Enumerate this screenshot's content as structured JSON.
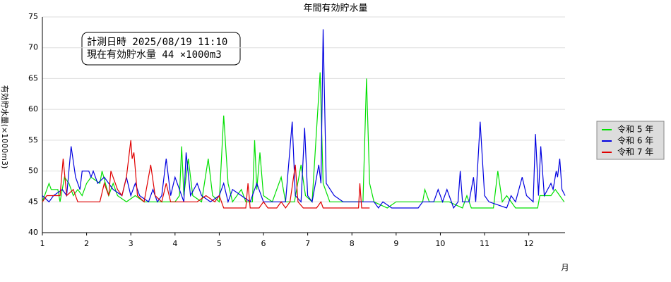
{
  "chart_data": {
    "type": "line",
    "title": "年間有効貯水量",
    "x_label": "月",
    "y_label": "有効貯水量(×1000m3)",
    "annotations": [
      "計測日時 2025/08/19 11:10",
      "現在有効貯水量 44 ×1000m3"
    ],
    "xlim": [
      1,
      12.82
    ],
    "xticks": [
      1,
      2,
      3,
      4,
      5,
      6,
      7,
      8,
      9,
      10,
      11,
      12
    ],
    "ylim": [
      40,
      75
    ],
    "yticks": [
      40,
      45,
      50,
      55,
      60,
      65,
      70,
      75
    ],
    "grid": true,
    "legend": "right",
    "series": [
      {
        "name": "令和 5 年",
        "color": "#00e000",
        "x": [
          1.0,
          1.15,
          1.2,
          1.35,
          1.4,
          1.5,
          1.6,
          1.7,
          1.8,
          1.9,
          2.0,
          2.1,
          2.3,
          2.35,
          2.5,
          2.6,
          2.7,
          2.9,
          3.1,
          3.3,
          4.0,
          4.1,
          4.15,
          4.2,
          4.3,
          4.4,
          4.6,
          4.75,
          4.85,
          5.0,
          5.1,
          5.2,
          5.3,
          5.5,
          5.6,
          5.75,
          5.8,
          5.85,
          5.92,
          6.0,
          6.2,
          6.4,
          6.5,
          6.7,
          6.85,
          6.95,
          7.1,
          7.28,
          7.35,
          7.5,
          8.25,
          8.33,
          8.4,
          8.5,
          8.8,
          9.0,
          9.6,
          9.65,
          9.75,
          10.2,
          10.5,
          10.6,
          10.7,
          11.2,
          11.3,
          11.4,
          11.5,
          11.7,
          12.2,
          12.25,
          12.5,
          12.6,
          12.7,
          12.8
        ],
        "values": [
          45,
          48,
          47,
          47,
          45,
          49,
          48,
          46,
          47,
          46,
          48,
          49,
          48,
          50,
          46,
          48,
          46,
          45,
          46,
          45,
          45,
          46,
          54,
          46,
          52,
          46,
          45,
          52,
          46,
          45,
          59,
          48,
          45,
          47,
          45,
          45,
          55,
          47,
          53,
          46,
          45,
          49,
          45,
          45,
          51,
          46,
          45,
          66,
          48,
          45,
          45,
          65,
          48,
          45,
          44,
          45,
          45,
          47,
          45,
          45,
          44,
          46,
          44,
          44,
          50,
          45,
          46,
          44,
          44,
          46,
          46,
          47,
          46,
          45
        ]
      },
      {
        "name": "令和 6 年",
        "color": "#0000e0",
        "x": [
          1.0,
          1.15,
          1.25,
          1.45,
          1.55,
          1.65,
          1.75,
          1.85,
          1.9,
          2.05,
          2.1,
          2.15,
          2.25,
          2.4,
          2.6,
          2.8,
          2.9,
          3.0,
          3.1,
          3.2,
          3.4,
          3.5,
          3.6,
          3.7,
          3.8,
          3.9,
          4.0,
          4.1,
          4.2,
          4.25,
          4.35,
          4.5,
          4.6,
          4.8,
          5.0,
          5.1,
          5.2,
          5.3,
          5.5,
          5.7,
          5.85,
          6.0,
          6.5,
          6.65,
          6.72,
          6.85,
          6.93,
          7.0,
          7.1,
          7.25,
          7.3,
          7.35,
          7.42,
          7.6,
          7.8,
          8.5,
          8.6,
          8.7,
          8.9,
          9.5,
          9.6,
          9.85,
          9.95,
          10.05,
          10.15,
          10.3,
          10.4,
          10.45,
          10.5,
          10.65,
          10.75,
          10.8,
          10.9,
          11.0,
          11.1,
          11.5,
          11.6,
          11.7,
          11.85,
          11.95,
          12.1,
          12.15,
          12.22,
          12.27,
          12.35,
          12.5,
          12.55,
          12.62,
          12.65,
          12.7,
          12.75,
          12.82
        ],
        "values": [
          46,
          45,
          46,
          47,
          46,
          54,
          49,
          47,
          50,
          50,
          49,
          50,
          48,
          49,
          47,
          46,
          49,
          46,
          48,
          46,
          45,
          47,
          45,
          46,
          52,
          46,
          49,
          47,
          45,
          53,
          46,
          48,
          46,
          45,
          46,
          48,
          45,
          47,
          46,
          45,
          48,
          45,
          45,
          58,
          46,
          45,
          57,
          46,
          45,
          51,
          48,
          73,
          48,
          46,
          45,
          45,
          44,
          45,
          44,
          44,
          45,
          45,
          47,
          45,
          47,
          44,
          45,
          50,
          45,
          45,
          49,
          45,
          58,
          46,
          45,
          44,
          46,
          45,
          49,
          46,
          45,
          56,
          46,
          54,
          46,
          48,
          47,
          50,
          49,
          52,
          47,
          46
        ]
      },
      {
        "name": "令和 7 年",
        "color": "#e00000",
        "x": [
          1.0,
          1.1,
          1.4,
          1.47,
          1.55,
          1.7,
          1.8,
          2.3,
          2.4,
          2.5,
          2.55,
          2.7,
          2.8,
          2.9,
          3.0,
          3.03,
          3.07,
          3.15,
          3.3,
          3.45,
          3.55,
          3.7,
          3.8,
          3.9,
          4.5,
          4.7,
          4.9,
          5.0,
          5.1,
          5.6,
          5.65,
          5.7,
          5.9,
          6.0,
          6.1,
          6.3,
          6.4,
          6.5,
          6.6,
          6.72,
          6.78,
          6.9,
          7.2,
          7.3,
          7.35,
          8.15,
          8.18,
          8.22,
          8.4
        ],
        "values": [
          45,
          46,
          46,
          52,
          46,
          47,
          45,
          45,
          48,
          46,
          50,
          47,
          46,
          49,
          55,
          52,
          53,
          46,
          45,
          51,
          46,
          45,
          48,
          45,
          45,
          46,
          45,
          46,
          44,
          44,
          48,
          44,
          44,
          45,
          44,
          44,
          45,
          44,
          45,
          51,
          45,
          44,
          44,
          45,
          44,
          44,
          48,
          44,
          44
        ]
      }
    ]
  }
}
